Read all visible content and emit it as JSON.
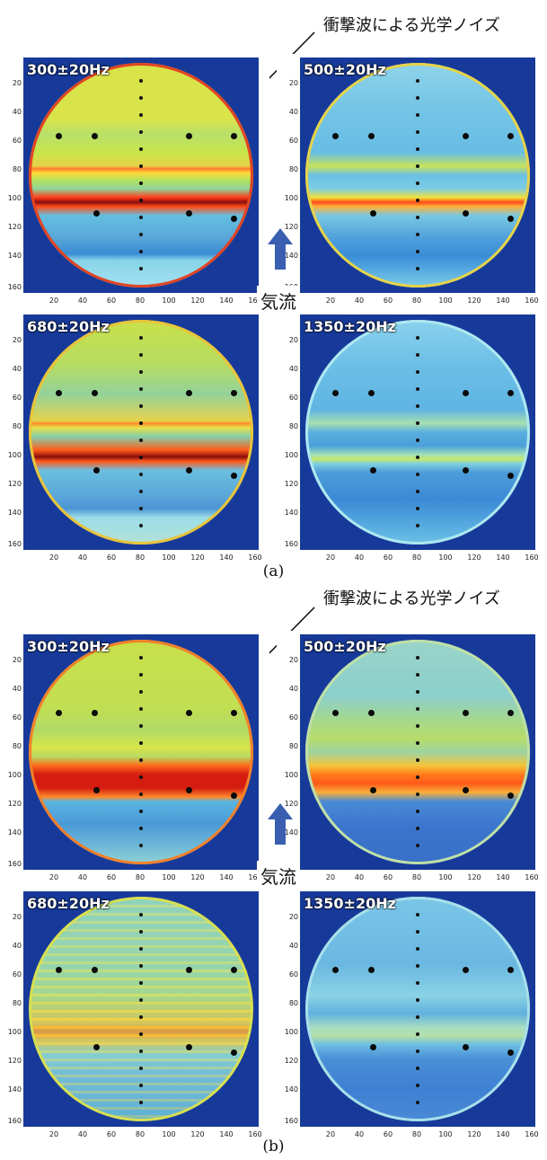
{
  "figure_a": {
    "annotation": "衝撃波による光学ノイズ",
    "airflow_label": "気流",
    "caption": "(a)",
    "panels": [
      {
        "label": "300±20Hz",
        "theme": "a300"
      },
      {
        "label": "500±20Hz",
        "theme": "a500"
      },
      {
        "label": "680±20Hz",
        "theme": "a680"
      },
      {
        "label": "1350±20Hz",
        "theme": "a1350"
      }
    ]
  },
  "figure_b": {
    "annotation": "衝撃波による光学ノイズ",
    "airflow_label": "気流",
    "caption": "(b)",
    "panels": [
      {
        "label": "300±20Hz",
        "theme": "b300"
      },
      {
        "label": "500±20Hz",
        "theme": "b500"
      },
      {
        "label": "680±20Hz",
        "theme": "b680"
      },
      {
        "label": "1350±20Hz",
        "theme": "b1350"
      }
    ]
  },
  "axes": {
    "y_ticks": [
      "20",
      "40",
      "60",
      "80",
      "100",
      "120",
      "140",
      "160"
    ],
    "x_ticks": [
      "20",
      "40",
      "60",
      "80",
      "100",
      "120",
      "140",
      "160"
    ]
  },
  "colors": {
    "background_blue": "#173a9a",
    "arrow_blue": "#3a5fb0"
  }
}
